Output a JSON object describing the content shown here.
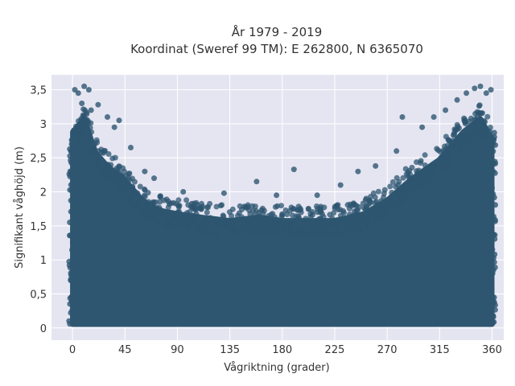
{
  "chart_data": {
    "type": "scatter",
    "title": "År 1979 - 2019",
    "subtitle": "Koordinat (Sweref 99 TM): E 262800, N 6365070",
    "xlabel": "Vågriktning (grader)",
    "ylabel": "Signifikant våghöjd (m)",
    "xlim": [
      -18,
      370
    ],
    "ylim": [
      -0.18,
      3.72
    ],
    "x_ticks": [
      0,
      45,
      90,
      135,
      180,
      225,
      270,
      315,
      360
    ],
    "x_tick_labels": [
      "0",
      "45",
      "90",
      "135",
      "180",
      "225",
      "270",
      "315",
      "360"
    ],
    "y_ticks": [
      0,
      0.5,
      1,
      1.5,
      2,
      2.5,
      3,
      3.5
    ],
    "y_tick_labels": [
      "0",
      "0,5",
      "1",
      "1,5",
      "2",
      "2,5",
      "3",
      "3,5"
    ],
    "grid": true,
    "marker_color": "#2e5670",
    "background_color": "#e5e5f2",
    "upper_envelope": {
      "x": [
        0,
        10,
        20,
        30,
        45,
        60,
        75,
        90,
        110,
        135,
        160,
        180,
        200,
        225,
        250,
        270,
        290,
        315,
        335,
        350,
        360
      ],
      "y": [
        3.0,
        3.2,
        2.7,
        2.5,
        2.3,
        2.0,
        1.85,
        1.8,
        1.75,
        1.7,
        1.75,
        1.7,
        1.7,
        1.7,
        1.8,
        2.0,
        2.3,
        2.6,
        3.0,
        3.2,
        2.9
      ]
    },
    "outliers": [
      {
        "x": 2,
        "y": 3.5
      },
      {
        "x": 5,
        "y": 3.45
      },
      {
        "x": 10,
        "y": 3.55
      },
      {
        "x": 14,
        "y": 3.5
      },
      {
        "x": 8,
        "y": 3.3
      },
      {
        "x": 16,
        "y": 3.2
      },
      {
        "x": 22,
        "y": 3.28
      },
      {
        "x": 30,
        "y": 3.1
      },
      {
        "x": 40,
        "y": 3.05
      },
      {
        "x": 36,
        "y": 2.95
      },
      {
        "x": 50,
        "y": 2.65
      },
      {
        "x": 62,
        "y": 2.3
      },
      {
        "x": 70,
        "y": 2.2
      },
      {
        "x": 95,
        "y": 2.0
      },
      {
        "x": 130,
        "y": 1.98
      },
      {
        "x": 158,
        "y": 2.15
      },
      {
        "x": 175,
        "y": 1.95
      },
      {
        "x": 190,
        "y": 2.33
      },
      {
        "x": 210,
        "y": 1.95
      },
      {
        "x": 230,
        "y": 2.1
      },
      {
        "x": 245,
        "y": 2.3
      },
      {
        "x": 260,
        "y": 2.38
      },
      {
        "x": 278,
        "y": 2.6
      },
      {
        "x": 283,
        "y": 3.1
      },
      {
        "x": 300,
        "y": 2.95
      },
      {
        "x": 310,
        "y": 3.1
      },
      {
        "x": 320,
        "y": 3.2
      },
      {
        "x": 330,
        "y": 3.35
      },
      {
        "x": 338,
        "y": 3.45
      },
      {
        "x": 345,
        "y": 3.52
      },
      {
        "x": 350,
        "y": 3.55
      },
      {
        "x": 355,
        "y": 3.45
      },
      {
        "x": 359,
        "y": 3.5
      }
    ]
  }
}
